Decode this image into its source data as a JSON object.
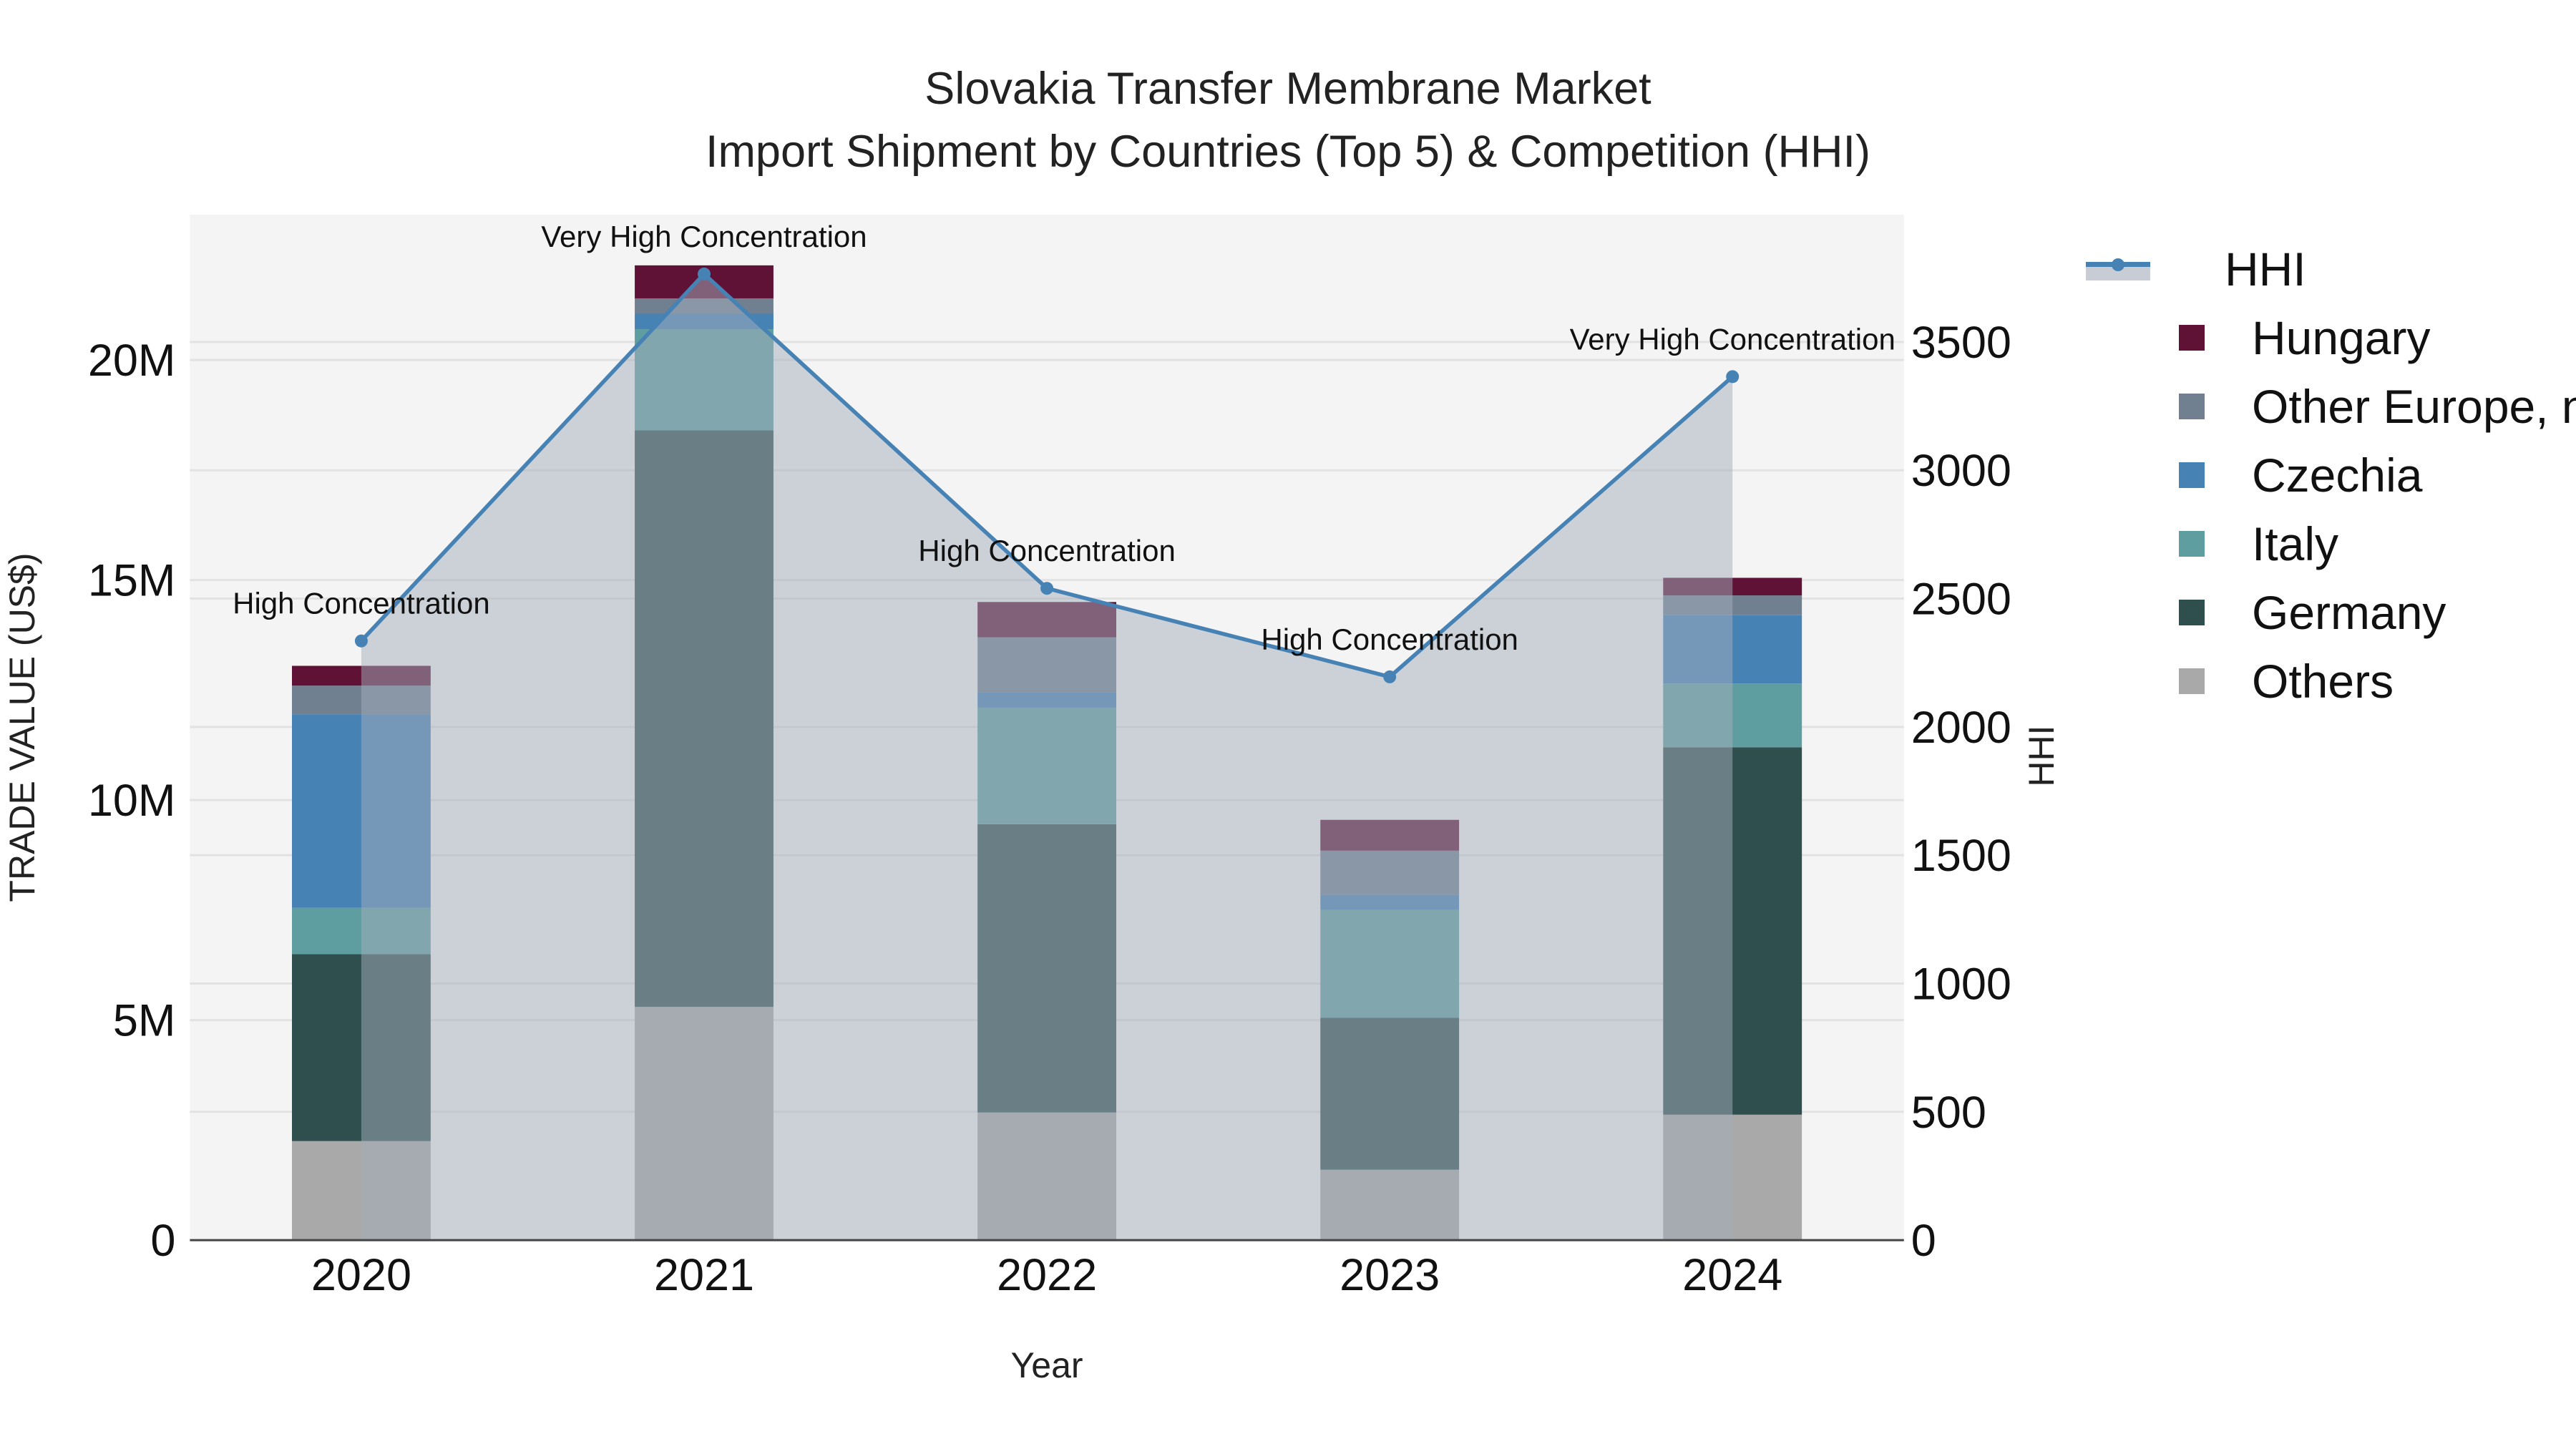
{
  "title": {
    "line1": "Slovakia Transfer Membrane Market",
    "line2": "Import Shipment by Countries (Top 5) & Competition (HHI)"
  },
  "axes": {
    "x_label": "Year",
    "y_left_label": "TRADE VALUE (US$)",
    "y_right_label": "HHI",
    "y_left_ticks": [
      "0",
      "5M",
      "10M",
      "15M",
      "20M"
    ],
    "y_right_ticks": [
      "0",
      "500",
      "1000",
      "1500",
      "2000",
      "2500",
      "3000",
      "3500"
    ],
    "x_ticks": [
      "2020",
      "2021",
      "2022",
      "2023",
      "2024"
    ]
  },
  "legend": [
    {
      "name": "HHI",
      "type": "line",
      "color": "#4682b4"
    },
    {
      "name": "Hungary",
      "type": "bar",
      "color": "#5f1236"
    },
    {
      "name": "Other Europe, nes",
      "type": "bar",
      "color": "#708090"
    },
    {
      "name": "Czechia",
      "type": "bar",
      "color": "#4682b4"
    },
    {
      "name": "Italy",
      "type": "bar",
      "color": "#5f9ea0"
    },
    {
      "name": "Germany",
      "type": "bar",
      "color": "#2f4f4f"
    },
    {
      "name": "Others",
      "type": "bar",
      "color": "#a9a9a9"
    }
  ],
  "annotations": [
    {
      "year": "2020",
      "text": "High Concentration"
    },
    {
      "year": "2021",
      "text": "Very High Concentration"
    },
    {
      "year": "2022",
      "text": "High Concentration"
    },
    {
      "year": "2023",
      "text": "High Concentration"
    },
    {
      "year": "2024",
      "text": "Very High Concentration"
    }
  ],
  "chart_data": {
    "type": "bar",
    "title": "Slovakia Transfer Membrane Market — Import Shipment by Countries (Top 5) & Competition (HHI)",
    "xlabel": "Year",
    "ylabel": "TRADE VALUE (US$)",
    "y2label": "HHI",
    "categories": [
      "2020",
      "2021",
      "2022",
      "2023",
      "2024"
    ],
    "stacked": true,
    "ylim": [
      0,
      23300000
    ],
    "y2lim": [
      0,
      4000
    ],
    "grid": true,
    "legend_position": "right",
    "series": [
      {
        "name": "Others",
        "color": "#a9a9a9",
        "values": [
          2250000,
          5300000,
          2900000,
          1600000,
          2850000
        ]
      },
      {
        "name": "Germany",
        "color": "#2f4f4f",
        "values": [
          4250000,
          13100000,
          6550000,
          3450000,
          8350000
        ]
      },
      {
        "name": "Italy",
        "color": "#5f9ea0",
        "values": [
          1050000,
          2300000,
          2650000,
          2450000,
          1450000
        ]
      },
      {
        "name": "Czechia",
        "color": "#4682b4",
        "values": [
          4400000,
          350000,
          350000,
          350000,
          1550000
        ]
      },
      {
        "name": "Other Europe, nes",
        "color": "#708090",
        "values": [
          650000,
          350000,
          1250000,
          1000000,
          450000
        ]
      },
      {
        "name": "Hungary",
        "color": "#5f1236",
        "values": [
          450000,
          750000,
          800000,
          700000,
          400000
        ]
      },
      {
        "name": "HHI",
        "type": "line",
        "axis": "right",
        "color": "#4682b4",
        "values": [
          2335,
          3765,
          2540,
          2195,
          3365
        ]
      }
    ],
    "annotations": [
      "High Concentration",
      "Very High Concentration",
      "High Concentration",
      "High Concentration",
      "Very High Concentration"
    ]
  }
}
